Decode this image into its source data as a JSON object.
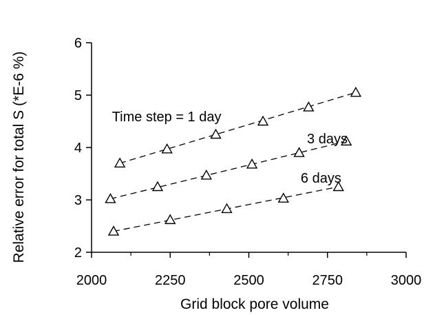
{
  "chart_data": {
    "type": "scatter",
    "title": "",
    "xlabel": "Grid block pore volume",
    "ylabel": "Relative error for total S (*E-6 %)",
    "xlim": [
      2000,
      3000
    ],
    "ylim": [
      2,
      6
    ],
    "xticks": [
      "2000",
      "2250",
      "2500",
      "2750",
      "3000"
    ],
    "yticks": [
      "2",
      "3",
      "4",
      "5",
      "6"
    ],
    "grid": false,
    "legend": "none",
    "marker": "open-triangle",
    "trendline_style": "dashed",
    "series": [
      {
        "name": "Time step = 1 day",
        "x": [
          2090,
          2240,
          2395,
          2545,
          2690,
          2840
        ],
        "y": [
          3.7,
          3.97,
          4.25,
          4.5,
          4.77,
          5.05
        ],
        "trend": [
          [
            2090,
            3.7
          ],
          [
            2840,
            5.05
          ]
        ]
      },
      {
        "name": "3 days",
        "x": [
          2060,
          2210,
          2365,
          2510,
          2660,
          2810
        ],
        "y": [
          3.02,
          3.25,
          3.47,
          3.68,
          3.9,
          4.12
        ],
        "trend": [
          [
            2060,
            3.02
          ],
          [
            2810,
            4.12
          ]
        ]
      },
      {
        "name": "6 days",
        "x": [
          2070,
          2250,
          2430,
          2610,
          2785
        ],
        "y": [
          2.4,
          2.62,
          2.83,
          3.03,
          3.25
        ],
        "trend": [
          [
            2070,
            2.4
          ],
          [
            2785,
            3.25
          ]
        ]
      }
    ],
    "annotations": [
      {
        "text": "Time step = 1 day",
        "x": 2065,
        "y": 4.5
      },
      {
        "text": "3 days",
        "x": 2685,
        "y": 4.08
      },
      {
        "text": "6 days",
        "x": 2665,
        "y": 3.33
      }
    ]
  }
}
